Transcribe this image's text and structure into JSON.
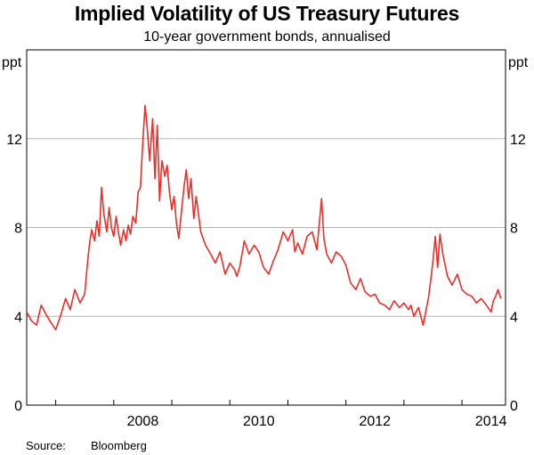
{
  "title": "Implied Volatility of US Treasury Futures",
  "subtitle": "10-year government bonds, annualised",
  "source": {
    "label": "Source:",
    "value": "Bloomberg"
  },
  "chart_data": {
    "type": "line",
    "title": "Implied Volatility of US Treasury Futures",
    "subtitle": "10-year government bonds, annualised",
    "ylabel_left": "ppt",
    "ylabel_right": "ppt",
    "ylim": [
      0,
      16
    ],
    "yticks": [
      0,
      4,
      8,
      12
    ],
    "xlim": [
      2006.5,
      2014.75
    ],
    "xticks": [
      2008,
      2010,
      2012,
      2014
    ],
    "grid": true,
    "line_color": "#e8302a",
    "series": [
      {
        "x": [
          2006.5,
          2006.58,
          2006.67,
          2006.75,
          2006.83,
          2006.92,
          2007.0,
          2007.08,
          2007.17,
          2007.25,
          2007.33,
          2007.42,
          2007.5,
          2007.54,
          2007.58,
          2007.62,
          2007.67,
          2007.71,
          2007.75,
          2007.79,
          2007.83,
          2007.88,
          2007.92,
          2007.96,
          2008.0,
          2008.04,
          2008.08,
          2008.12,
          2008.17,
          2008.21,
          2008.25,
          2008.29,
          2008.33,
          2008.38,
          2008.42,
          2008.46,
          2008.5,
          2008.54,
          2008.58,
          2008.62,
          2008.67,
          2008.71,
          2008.75,
          2008.79,
          2008.83,
          2008.88,
          2008.92,
          2008.96,
          2009.0,
          2009.04,
          2009.08,
          2009.12,
          2009.17,
          2009.21,
          2009.25,
          2009.29,
          2009.33,
          2009.38,
          2009.42,
          2009.5,
          2009.58,
          2009.67,
          2009.75,
          2009.83,
          2009.92,
          2010.0,
          2010.08,
          2010.12,
          2010.17,
          2010.25,
          2010.33,
          2010.42,
          2010.5,
          2010.58,
          2010.67,
          2010.75,
          2010.83,
          2010.92,
          2011.0,
          2011.08,
          2011.12,
          2011.17,
          2011.25,
          2011.33,
          2011.42,
          2011.5,
          2011.58,
          2011.62,
          2011.67,
          2011.75,
          2011.83,
          2011.92,
          2012.0,
          2012.08,
          2012.17,
          2012.25,
          2012.33,
          2012.42,
          2012.5,
          2012.58,
          2012.67,
          2012.75,
          2012.83,
          2012.92,
          2013.0,
          2013.08,
          2013.12,
          2013.17,
          2013.25,
          2013.33,
          2013.42,
          2013.46,
          2013.5,
          2013.54,
          2013.58,
          2013.62,
          2013.67,
          2013.75,
          2013.83,
          2013.92,
          2014.0,
          2014.08,
          2014.17,
          2014.25,
          2014.33,
          2014.42,
          2014.5,
          2014.54,
          2014.58,
          2014.62,
          2014.67
        ],
        "values": [
          4.2,
          3.8,
          3.6,
          4.5,
          4.1,
          3.7,
          3.4,
          4.0,
          4.8,
          4.3,
          5.2,
          4.6,
          5.0,
          6.2,
          7.2,
          7.9,
          7.4,
          8.3,
          7.6,
          9.8,
          8.6,
          7.8,
          8.9,
          8.0,
          7.6,
          8.5,
          7.8,
          7.2,
          7.9,
          7.4,
          8.1,
          7.7,
          8.5,
          8.2,
          9.6,
          9.8,
          11.8,
          13.5,
          12.4,
          11.0,
          12.9,
          10.2,
          12.6,
          9.2,
          11.0,
          10.3,
          10.8,
          9.6,
          8.8,
          9.4,
          8.2,
          7.5,
          8.8,
          9.8,
          10.6,
          9.3,
          10.2,
          8.4,
          9.4,
          7.8,
          7.2,
          6.8,
          6.4,
          6.9,
          5.9,
          6.4,
          6.1,
          5.8,
          6.2,
          7.4,
          6.8,
          7.2,
          6.9,
          6.2,
          5.9,
          6.5,
          7.0,
          7.8,
          7.4,
          7.9,
          6.9,
          7.3,
          6.8,
          7.6,
          7.8,
          7.0,
          9.3,
          7.5,
          6.8,
          6.4,
          6.9,
          6.7,
          6.3,
          5.5,
          5.2,
          5.7,
          5.1,
          4.9,
          5.0,
          4.6,
          4.5,
          4.3,
          4.7,
          4.4,
          4.6,
          4.3,
          4.5,
          4.0,
          4.4,
          3.6,
          4.8,
          5.6,
          6.5,
          7.6,
          6.2,
          7.7,
          6.8,
          5.8,
          5.4,
          5.9,
          5.2,
          5.0,
          4.9,
          4.6,
          4.8,
          4.5,
          4.2,
          4.7,
          4.9,
          5.2,
          4.8
        ]
      }
    ]
  }
}
